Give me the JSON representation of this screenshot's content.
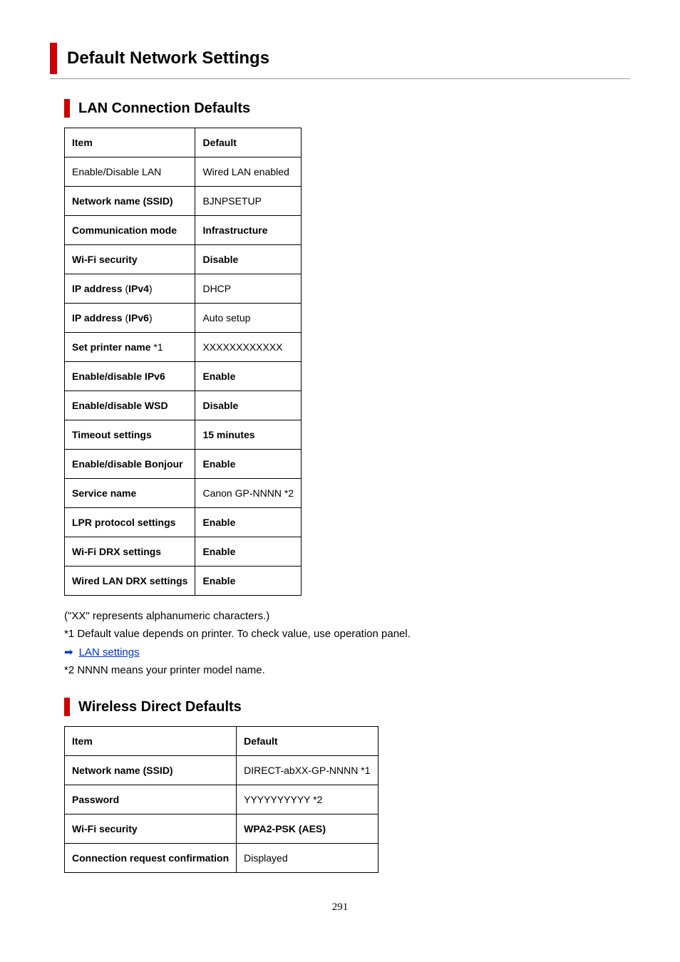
{
  "page": {
    "title": "Default Network Settings",
    "number": "291",
    "title_bar_color": "#cc0000",
    "divider_color": "#999999"
  },
  "section1": {
    "title": "LAN Connection Defaults",
    "headers": {
      "item": "Item",
      "default": "Default"
    },
    "rows": [
      {
        "item": "Enable/Disable LAN",
        "value": "Wired LAN enabled",
        "item_bold": false,
        "value_bold": false
      },
      {
        "item": "Network name (SSID)",
        "value": "BJNPSETUP",
        "item_bold": true,
        "value_bold": false
      },
      {
        "item": "Communication mode",
        "value": "Infrastructure",
        "item_bold": true,
        "value_bold": true
      },
      {
        "item": "Wi-Fi security",
        "value": "Disable",
        "item_bold": true,
        "value_bold": true
      },
      {
        "item": "IP address (IPv4)",
        "value": "DHCP",
        "item_bold": false,
        "value_bold": false,
        "item_html": true
      },
      {
        "item": "IP address (IPv6)",
        "value": "Auto setup",
        "item_bold": false,
        "value_bold": false,
        "item_html": true
      },
      {
        "item": "Set printer name *1",
        "value": "XXXXXXXXXXXX",
        "item_bold": false,
        "value_bold": false,
        "item_html": true
      },
      {
        "item": "Enable/disable IPv6",
        "value": "Enable",
        "item_bold": true,
        "value_bold": true
      },
      {
        "item": "Enable/disable WSD",
        "value": "Disable",
        "item_bold": true,
        "value_bold": true
      },
      {
        "item": "Timeout settings",
        "value": "15 minutes",
        "item_bold": true,
        "value_bold": true
      },
      {
        "item": "Enable/disable Bonjour",
        "value": "Enable",
        "item_bold": true,
        "value_bold": true
      },
      {
        "item": "Service name",
        "value": "Canon GP-NNNN *2",
        "item_bold": true,
        "value_bold": false
      },
      {
        "item": "LPR protocol settings",
        "value": "Enable",
        "item_bold": true,
        "value_bold": true
      },
      {
        "item": "Wi-Fi DRX settings",
        "value": "Enable",
        "item_bold": true,
        "value_bold": true
      },
      {
        "item": "Wired LAN DRX settings",
        "value": "Enable",
        "item_bold": true,
        "value_bold": true
      }
    ]
  },
  "notes": {
    "n1": "(\"XX\" represents alphanumeric characters.)",
    "n2": "*1 Default value depends on printer. To check value, use operation panel.",
    "link_label": "LAN settings",
    "n3": "*2 NNNN means your printer model name."
  },
  "section2": {
    "title": "Wireless Direct Defaults",
    "headers": {
      "item": "Item",
      "default": "Default"
    },
    "rows": [
      {
        "item": "Network name (SSID)",
        "value": "DIRECT-abXX-GP-NNNN *1",
        "item_bold": true,
        "value_bold": false
      },
      {
        "item": "Password",
        "value": "YYYYYYYYYY *2",
        "item_bold": true,
        "value_bold": false
      },
      {
        "item": "Wi-Fi security",
        "value": "WPA2-PSK (AES)",
        "item_bold": true,
        "value_bold": true
      },
      {
        "item": "Connection request confirmation",
        "value": "Displayed",
        "item_bold": true,
        "value_bold": false
      }
    ]
  }
}
